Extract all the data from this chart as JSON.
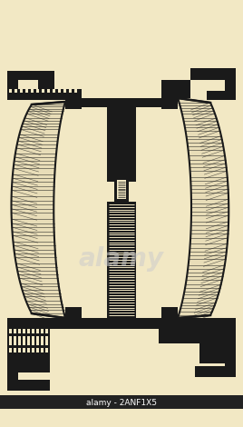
{
  "bg_color": "#f2e8c4",
  "line_color": "#1a1a1a",
  "figsize": [
    2.68,
    4.7
  ],
  "dpi": 100,
  "lw": 1.5,
  "bottom_bar_color": "#111111",
  "bottom_text": "alamy - 2ANF1X5",
  "watermark": "alamy"
}
